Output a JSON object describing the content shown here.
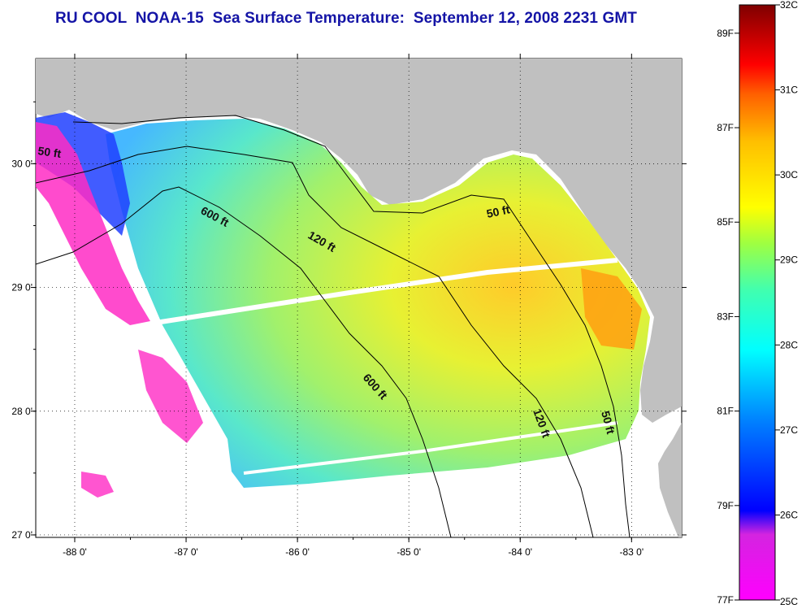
{
  "title": "RU COOL  NOAA-15  Sea Surface Temperature:  September 12, 2008 2231 GMT",
  "map": {
    "lon_ticks": [
      {
        "value": -88,
        "label": "-88 0'"
      },
      {
        "value": -87,
        "label": "-87 0'"
      },
      {
        "value": -86,
        "label": "-86 0'"
      },
      {
        "value": -85,
        "label": "-85 0'"
      },
      {
        "value": -84,
        "label": "-84 0'"
      },
      {
        "value": -83,
        "label": "-83 0'"
      }
    ],
    "lat_ticks": [
      {
        "value": 30,
        "label": "30 0'"
      },
      {
        "value": 29,
        "label": "29 0'"
      },
      {
        "value": 28,
        "label": "28 0'"
      },
      {
        "value": 27,
        "label": "27 0'"
      }
    ],
    "extent": {
      "lon_min": -88.35,
      "lon_max": -82.55,
      "lat_min": 26.98,
      "lat_max": 30.85
    },
    "grid": "dotted",
    "land_color": "#c0c0c0",
    "ocean_color": "#ffffff",
    "contour_labels": [
      "50 ft",
      "600 ft",
      "120 ft",
      "50 ft",
      "600 ft",
      "120 ft",
      "50 ft"
    ]
  },
  "colorbar": {
    "colors_top_to_bottom": [
      "#7f0000",
      "#ff0000",
      "#ff8000",
      "#ffff00",
      "#00ffff",
      "#0000ff",
      "#ff00ff"
    ],
    "celsius": [
      "32C",
      "31C",
      "30C",
      "29C",
      "28C",
      "27C",
      "26C",
      "25C"
    ],
    "fahrenheit": [
      "89F",
      "87F",
      "85F",
      "83F",
      "81F",
      "79F",
      "77F"
    ],
    "range_c": [
      25,
      32
    ]
  }
}
